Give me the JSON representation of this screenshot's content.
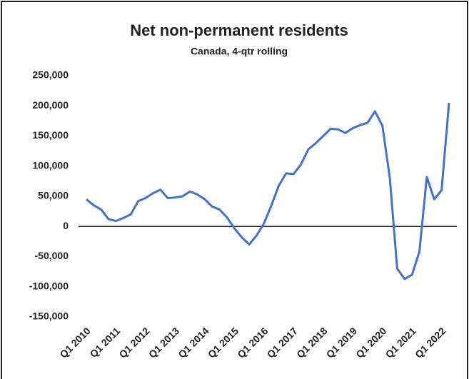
{
  "chart_data": {
    "type": "line",
    "title": "Net non-permanent residents",
    "subtitle": "Canada, 4-qtr rolling",
    "categories": [
      "Q1 2010",
      null,
      null,
      null,
      "Q1 2011",
      null,
      null,
      null,
      "Q1 2012",
      null,
      null,
      null,
      "Q1 2013",
      null,
      null,
      null,
      "Q1 2014",
      null,
      null,
      null,
      "Q1 2015",
      null,
      null,
      null,
      "Q1 2016",
      null,
      null,
      null,
      "Q1 2017",
      null,
      null,
      null,
      "Q1 2018",
      null,
      null,
      null,
      "Q1 2019",
      null,
      null,
      null,
      "Q1 2020",
      null,
      null,
      null,
      "Q1 2021",
      null,
      null,
      null,
      "Q1 2022",
      null
    ],
    "series": [
      {
        "name": "Net non-permanent residents",
        "color": "#4472c4",
        "values": [
          45000,
          35000,
          28000,
          12000,
          9000,
          14000,
          20000,
          42000,
          47000,
          55000,
          61000,
          47000,
          48000,
          50000,
          58000,
          53000,
          45000,
          33000,
          28000,
          15000,
          -3000,
          -18000,
          -30000,
          -15000,
          5000,
          35000,
          68000,
          88000,
          87000,
          103000,
          128000,
          138000,
          150000,
          162000,
          161000,
          155000,
          163000,
          168000,
          172000,
          191000,
          167000,
          80000,
          -70000,
          -87000,
          -80000,
          -42000,
          82000,
          45000,
          60000,
          205000
        ]
      }
    ],
    "ylim": [
      -150000,
      250000
    ],
    "yticks": [
      {
        "value": 250000,
        "label": "250,000"
      },
      {
        "value": 200000,
        "label": "200,000"
      },
      {
        "value": 150000,
        "label": "150,000"
      },
      {
        "value": 100000,
        "label": "100,000"
      },
      {
        "value": 50000,
        "label": "50,000"
      },
      0,
      {
        "value": -50000,
        "label": "-50,000"
      },
      {
        "value": -100000,
        "label": "-100,000"
      },
      {
        "value": -150000,
        "label": "-150,000"
      }
    ],
    "grid": false
  }
}
